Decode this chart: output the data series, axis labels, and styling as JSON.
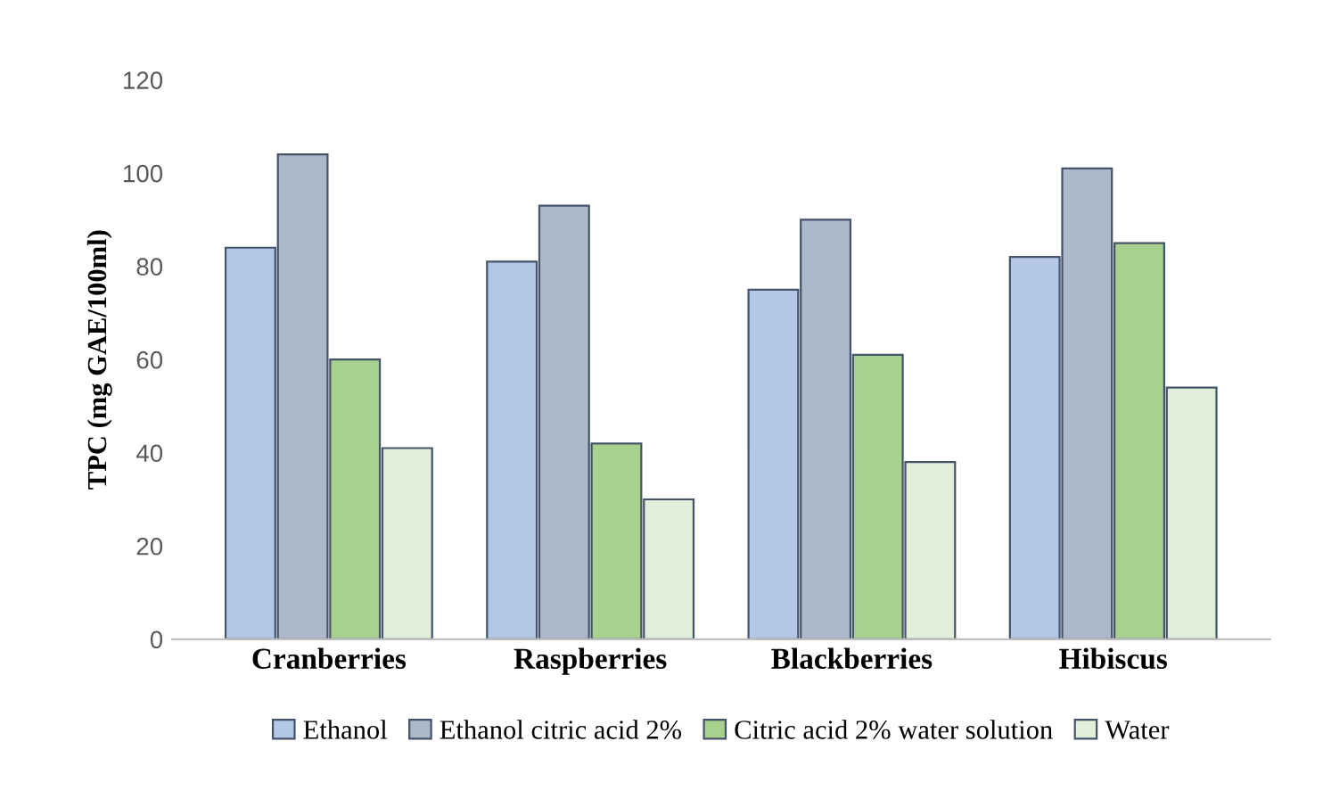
{
  "chart_data": {
    "type": "bar",
    "ylabel": "TPC (mg GAE/100ml)",
    "categories": [
      "Cranberries",
      "Raspberries",
      "Blackberries",
      "Hibiscus"
    ],
    "series": [
      {
        "name": "Ethanol",
        "color": "#b4c7e7",
        "values": [
          84,
          81,
          75,
          82
        ]
      },
      {
        "name": "Ethanol citric acid 2%",
        "color": "#adb9ca",
        "values": [
          104,
          93,
          90,
          101
        ]
      },
      {
        "name": "Citric acid 2% water solution",
        "color": "#a9d18e",
        "values": [
          60,
          42,
          61,
          85
        ]
      },
      {
        "name": "Water",
        "color": "#e2f0d9",
        "values": [
          41,
          30,
          38,
          54
        ]
      }
    ],
    "ylim": [
      0,
      120
    ],
    "yticks": [
      0,
      20,
      40,
      60,
      80,
      100,
      120
    ],
    "grid": false,
    "legend": "bottom"
  }
}
